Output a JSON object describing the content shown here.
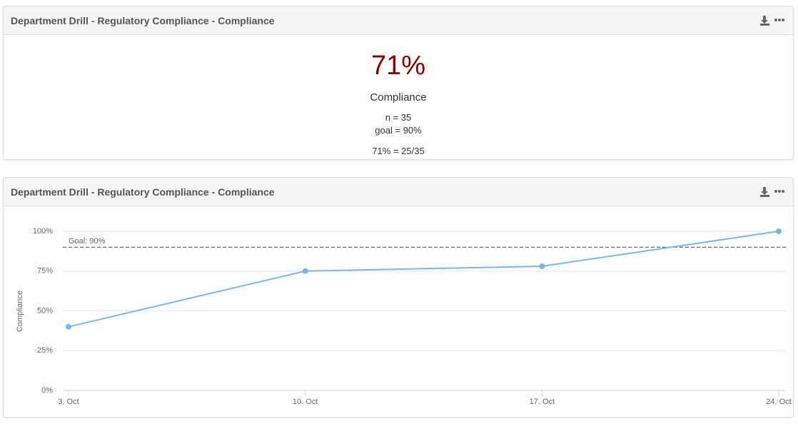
{
  "kpi_panel": {
    "title": "Department Drill - Regulatory Compliance - Compliance",
    "value": "71%",
    "label": "Compliance",
    "n": "n = 35",
    "goal": "goal = 90%",
    "ratio": "71% = 25/35"
  },
  "chart_data": {
    "type": "line",
    "title": "Department Drill - Regulatory Compliance - Compliance",
    "y_label": "Compliance",
    "categories": [
      "3. Oct",
      "10. Oct",
      "17. Oct",
      "24. Oct"
    ],
    "series": [
      {
        "name": "Compliance",
        "color": "#7cb5ec",
        "values": [
          40,
          75,
          78,
          100
        ]
      }
    ],
    "goal": {
      "value": 90,
      "label": "Goal: 90%"
    },
    "ylim": [
      0,
      100
    ],
    "yticks": [
      {
        "value": 0,
        "label": "0%"
      },
      {
        "value": 25,
        "label": "25%"
      },
      {
        "value": 50,
        "label": "50%"
      },
      {
        "value": 75,
        "label": "75%"
      },
      {
        "value": 100,
        "label": "100%"
      }
    ],
    "grid": true
  }
}
